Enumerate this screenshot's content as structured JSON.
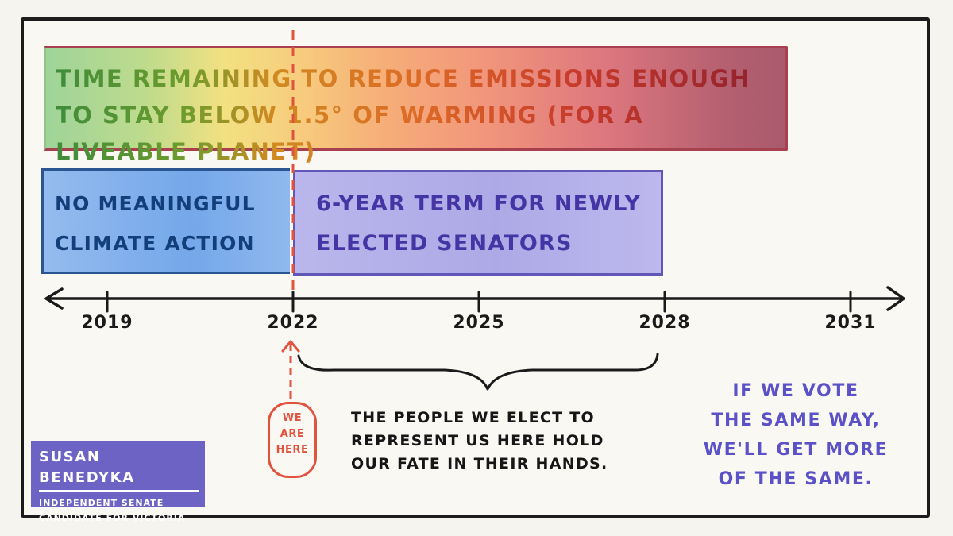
{
  "colors": {
    "frame": "#1c1c1c",
    "marker": "#e2533f",
    "blue_band_text": "#123e7a",
    "purple_band_text": "#4535a4",
    "vote_note_text": "#5b52c8",
    "badge_bg": "#6c63c4"
  },
  "bands": {
    "top_label": "Time remaining to reduce emissions enough to stay below 1.5° of warming (for a liveable planet)",
    "left_label_line1": "No meaningful",
    "left_label_line2": "climate action",
    "right_label_line1": "6-year term for newly",
    "right_label_line2": "elected senators"
  },
  "axis": {
    "ticks": [
      "2019",
      "2022",
      "2025",
      "2028",
      "2031"
    ]
  },
  "marker": {
    "year": "2022",
    "line1": "WE",
    "line2": "ARE",
    "line3": "HERE"
  },
  "notes": {
    "brace_text": "The people we elect to represent us here hold our fate in their hands.",
    "vote_line1": "If we vote",
    "vote_line2": "the same way,",
    "vote_line3": "we'll get more",
    "vote_line4": "of the same."
  },
  "badge": {
    "name": "Susan Benedyka",
    "subtitle_line1": "Independent Senate",
    "subtitle_line2": "candidate for Victoria"
  }
}
